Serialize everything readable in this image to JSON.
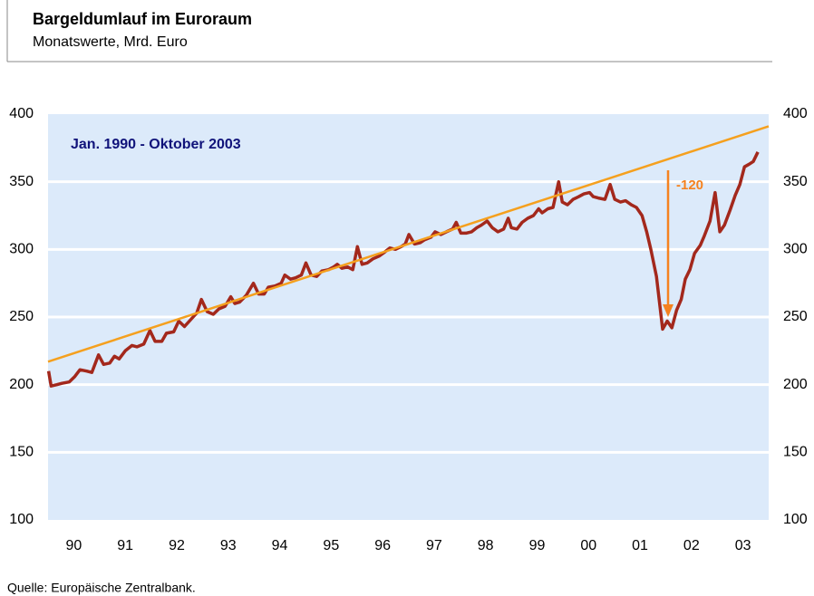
{
  "chart_data": {
    "type": "line",
    "title": "Bargeldumlauf im  Euroraum",
    "subtitle": "Monatswerte, Mrd. Euro",
    "source": "Quelle: Europäische Zentralbank.",
    "annotations": [
      "Jan. 1990 - Oktober 2003",
      "-120"
    ],
    "xlim": [
      1990,
      2004
    ],
    "xticks": [
      {
        "value": 1990.5,
        "label": "90"
      },
      {
        "value": 1991.5,
        "label": "91"
      },
      {
        "value": 1992.5,
        "label": "92"
      },
      {
        "value": 1993.5,
        "label": "93"
      },
      {
        "value": 1994.5,
        "label": "94"
      },
      {
        "value": 1995.5,
        "label": "95"
      },
      {
        "value": 1996.5,
        "label": "96"
      },
      {
        "value": 1997.5,
        "label": "97"
      },
      {
        "value": 1998.5,
        "label": "98"
      },
      {
        "value": 1999.5,
        "label": "99"
      },
      {
        "value": 2000.5,
        "label": "00"
      },
      {
        "value": 2001.5,
        "label": "01"
      },
      {
        "value": 2002.5,
        "label": "02"
      },
      {
        "value": 2003.5,
        "label": "03"
      }
    ],
    "ylim": [
      100,
      400
    ],
    "yticks": [
      100,
      150,
      200,
      250,
      300,
      350,
      400
    ],
    "y2lim": [
      100,
      400
    ],
    "y2ticks": [
      100,
      150,
      200,
      250,
      300,
      350,
      400
    ],
    "grid": true,
    "series": [
      {
        "color": "#a3281c",
        "x": [
          1990.01,
          1990.06,
          1990.17,
          1990.27,
          1990.41,
          1990.52,
          1990.62,
          1990.75,
          1990.85,
          1990.98,
          1991.08,
          1991.2,
          1991.29,
          1991.38,
          1991.5,
          1991.63,
          1991.73,
          1991.86,
          1991.98,
          1992.08,
          1992.21,
          1992.3,
          1992.44,
          1992.54,
          1992.65,
          1992.77,
          1992.89,
          1992.98,
          1993.09,
          1993.21,
          1993.32,
          1993.44,
          1993.55,
          1993.63,
          1993.72,
          1993.85,
          1993.99,
          1994.09,
          1994.2,
          1994.28,
          1994.41,
          1994.53,
          1994.6,
          1994.71,
          1994.81,
          1994.92,
          1995.01,
          1995.11,
          1995.22,
          1995.32,
          1995.45,
          1995.55,
          1995.62,
          1995.71,
          1995.82,
          1995.92,
          1996.01,
          1996.1,
          1996.2,
          1996.31,
          1996.43,
          1996.54,
          1996.64,
          1996.75,
          1996.86,
          1996.94,
          1997.01,
          1997.12,
          1997.23,
          1997.31,
          1997.44,
          1997.52,
          1997.63,
          1997.74,
          1997.86,
          1997.93,
          1998.02,
          1998.12,
          1998.23,
          1998.33,
          1998.42,
          1998.53,
          1998.63,
          1998.74,
          1998.85,
          1998.94,
          1999.0,
          1999.11,
          1999.21,
          1999.32,
          1999.43,
          1999.53,
          1999.6,
          1999.71,
          1999.81,
          1999.92,
          1999.99,
          2000.09,
          2000.2,
          2000.31,
          2000.41,
          2000.52,
          2000.59,
          2000.69,
          2000.82,
          2000.92,
          2001.01,
          2001.12,
          2001.22,
          2001.33,
          2001.43,
          2001.54,
          2001.63,
          2001.71,
          2001.82,
          2001.94,
          2002.03,
          2002.12,
          2002.21,
          2002.3,
          2002.38,
          2002.47,
          2002.56,
          2002.67,
          2002.75,
          2002.86,
          2002.96,
          2003.05,
          2003.14,
          2003.25,
          2003.35,
          2003.44,
          2003.53,
          2003.62,
          2003.7,
          2003.79
        ],
        "values": [
          210,
          199,
          200,
          201,
          202,
          206,
          211,
          210,
          209,
          222,
          215,
          216,
          221,
          219,
          225,
          229,
          228,
          230,
          240,
          232,
          232,
          238,
          239,
          247,
          243,
          248,
          253,
          263,
          254,
          252,
          256,
          258,
          265,
          260,
          261,
          266,
          275,
          267,
          267,
          272,
          273,
          275,
          281,
          278,
          279,
          281,
          290,
          281,
          280,
          284,
          285,
          287,
          289,
          286,
          287,
          285,
          302,
          289,
          290,
          293,
          295,
          298,
          301,
          300,
          302,
          304,
          311,
          304,
          305,
          307,
          309,
          313,
          311,
          313,
          315,
          320,
          312,
          312,
          313,
          316,
          318,
          321,
          316,
          313,
          315,
          323,
          316,
          315,
          320,
          323,
          325,
          330,
          327,
          330,
          331,
          350,
          335,
          333,
          337,
          339,
          341,
          342,
          339,
          338,
          337,
          348,
          337,
          335,
          336,
          333,
          331,
          325,
          313,
          300,
          280,
          241,
          247,
          242,
          255,
          263,
          278,
          285,
          297,
          303,
          310,
          321,
          342,
          313,
          318,
          329,
          340,
          348,
          361,
          363,
          365,
          372
        ]
      },
      {
        "color": "#f5a01e",
        "x": [
          1990,
          2004
        ],
        "values": [
          217,
          391
        ]
      }
    ]
  }
}
